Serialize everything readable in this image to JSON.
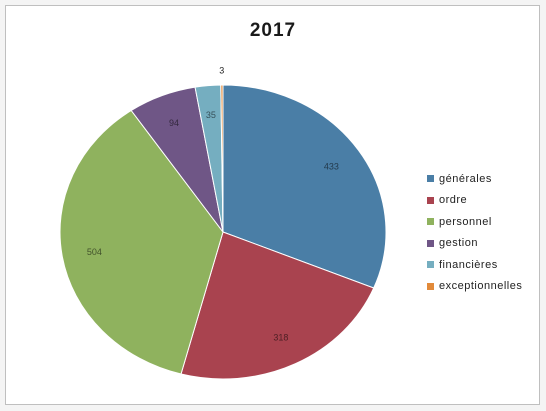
{
  "chart_data": {
    "type": "pie",
    "title": "2017",
    "categories": [
      "générales",
      "ordre",
      "personnel",
      "gestion",
      "financières",
      "exceptionnelles"
    ],
    "values": [
      433,
      318,
      504,
      94,
      35,
      3
    ],
    "colors": [
      "#4a7ea6",
      "#a9434f",
      "#8fb25e",
      "#6f5686",
      "#75aec0",
      "#e28a3a"
    ],
    "legend": "right"
  }
}
